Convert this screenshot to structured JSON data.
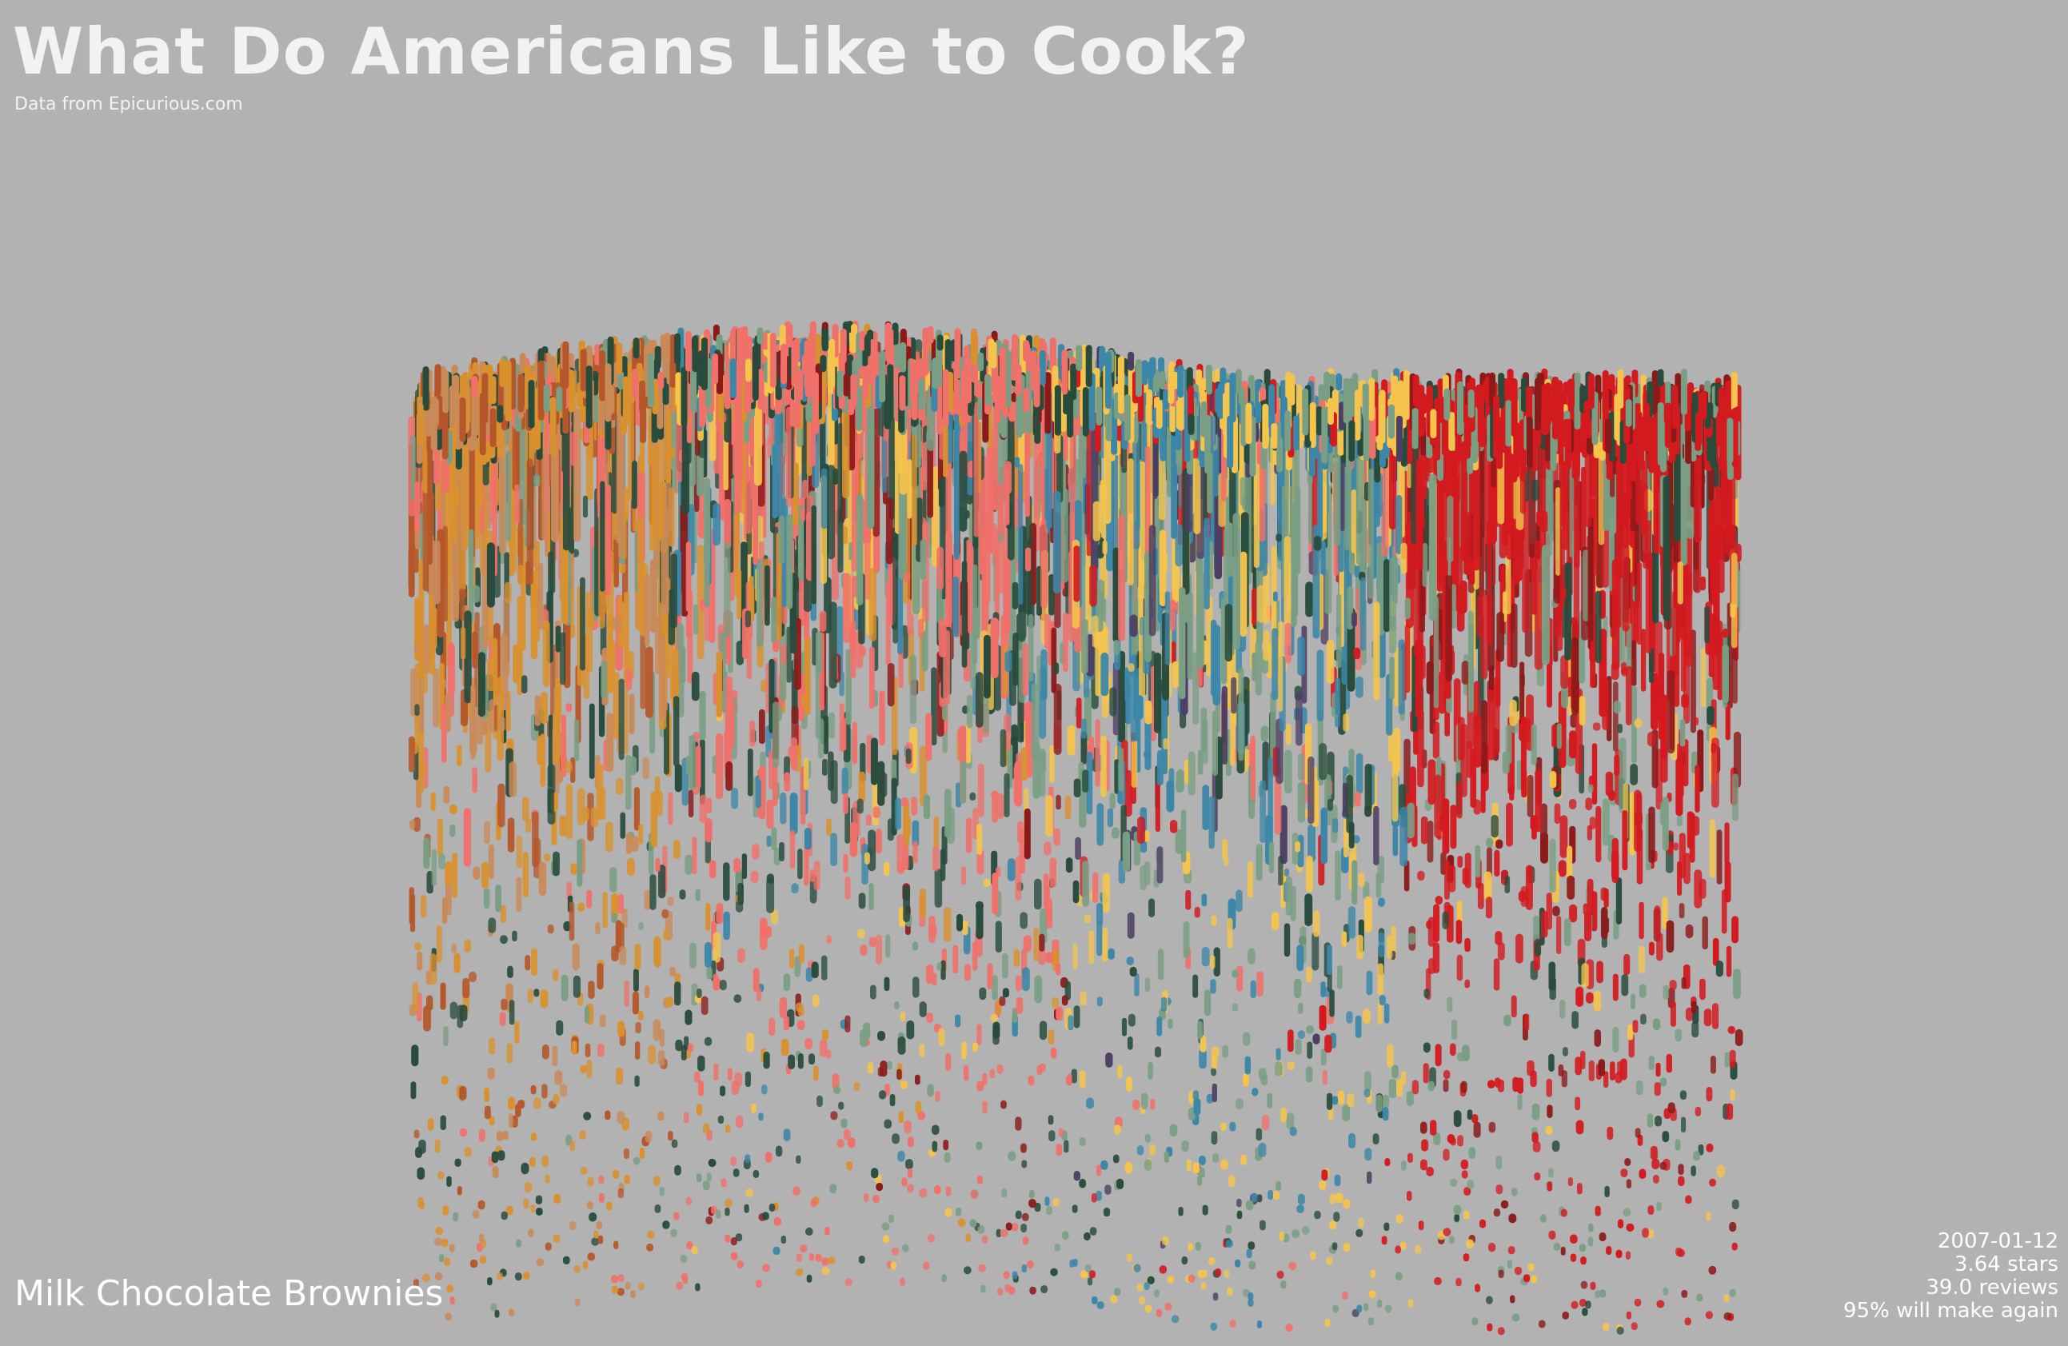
{
  "header": {
    "title": "What Do Americans Like to Cook?",
    "subtitle": "Data from Epicurious.com"
  },
  "recipe": {
    "name": "Milk Chocolate Brownies",
    "date": "2007-01-12",
    "rating": "3.64 stars",
    "reviews": "39.0 reviews",
    "make_again": "95% will make again"
  }
}
